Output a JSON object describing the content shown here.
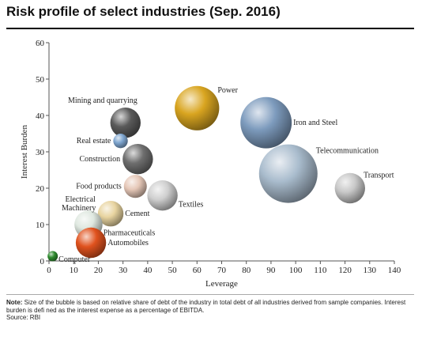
{
  "chart_data": {
    "type": "scatter",
    "title": "Risk profile of select industries (Sep. 2016)",
    "xlabel": "Leverage",
    "ylabel": "Interest Burden",
    "xlim": [
      0,
      140
    ],
    "ylim": [
      0,
      60
    ],
    "xticks": [
      "0",
      "10",
      "20",
      "30",
      "40",
      "50",
      "60",
      "70",
      "80",
      "90",
      "100",
      "110",
      "120",
      "130",
      "140"
    ],
    "yticks": [
      "0",
      "10",
      "20",
      "30",
      "40",
      "50",
      "60"
    ],
    "grid": false,
    "points": [
      {
        "name": "Power",
        "x": 60,
        "y": 42,
        "size": 0.75,
        "color": "#d9a520"
      },
      {
        "name": "Iron and Steel",
        "x": 88,
        "y": 38,
        "size": 1.0,
        "color": "#7d9bbd"
      },
      {
        "name": "Telecommunication",
        "x": 97,
        "y": 24,
        "size": 1.3,
        "color": "#a9bccd"
      },
      {
        "name": "Transport",
        "x": 122,
        "y": 20,
        "size": 0.35,
        "color": "#c8c8c8"
      },
      {
        "name": "Mining and quarrying",
        "x": 31,
        "y": 38,
        "size": 0.35,
        "color": "#5a5a5a"
      },
      {
        "name": "Real estate",
        "x": 29,
        "y": 33,
        "size": 0.08,
        "color": "#7fa6d0"
      },
      {
        "name": "Construction",
        "x": 36,
        "y": 28,
        "size": 0.35,
        "color": "#6e6e6e"
      },
      {
        "name": "Food products",
        "x": 35,
        "y": 20.5,
        "size": 0.2,
        "color": "#e6c8b8"
      },
      {
        "name": "Textiles",
        "x": 46,
        "y": 18,
        "size": 0.35,
        "color": "#cfcfcf"
      },
      {
        "name": "Cement",
        "x": 25,
        "y": 13,
        "size": 0.25,
        "color": "#e8d4a0"
      },
      {
        "name": "Electrical Machinery",
        "x": 16,
        "y": 11,
        "size": 0.1,
        "color": "#1f4f9f"
      },
      {
        "name": "Pharmaceuticals",
        "x": 16,
        "y": 10,
        "size": 0.3,
        "color": "#dfe8e0"
      },
      {
        "name": "Automobiles",
        "x": 17,
        "y": 5,
        "size": 0.35,
        "color": "#e0521e"
      },
      {
        "name": "Computer",
        "x": 1.5,
        "y": 1.3,
        "size": 0.04,
        "color": "#2e8b2e"
      }
    ]
  },
  "note": {
    "label": "Note:",
    "text": " Size of the bubble is based on relative share of debt of the industry in total debt of all industries derived from sample companies. Interest burden is defi ned as the interest expense as a percentage of EBITDA.",
    "source": "Source: RBI"
  }
}
